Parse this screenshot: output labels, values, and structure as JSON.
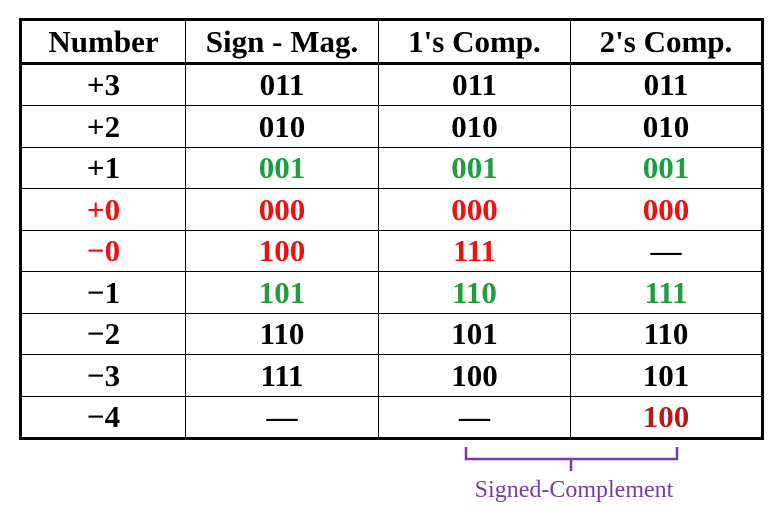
{
  "headers": [
    "Number",
    "Sign - Mag.",
    "1's Comp.",
    "2's Comp."
  ],
  "rows": [
    {
      "number": "+3",
      "sign_mag": "011",
      "ones_comp": "011",
      "twos_comp": "011"
    },
    {
      "number": "+2",
      "sign_mag": "010",
      "ones_comp": "010",
      "twos_comp": "010"
    },
    {
      "number": "+1",
      "sign_mag": "001",
      "ones_comp": "001",
      "twos_comp": "001"
    },
    {
      "number": "+0",
      "sign_mag": "000",
      "ones_comp": "000",
      "twos_comp": "000"
    },
    {
      "number": "−0",
      "sign_mag": "100",
      "ones_comp": "111",
      "twos_comp": "—"
    },
    {
      "number": "−1",
      "sign_mag": "101",
      "ones_comp": "110",
      "twos_comp": "111"
    },
    {
      "number": "−2",
      "sign_mag": "110",
      "ones_comp": "101",
      "twos_comp": "110"
    },
    {
      "number": "−3",
      "sign_mag": "111",
      "ones_comp": "100",
      "twos_comp": "101"
    },
    {
      "number": "−4",
      "sign_mag": "—",
      "ones_comp": "—",
      "twos_comp": "100"
    }
  ],
  "annotation": {
    "label": "Signed-Complement"
  },
  "colors": {
    "default": "#000000",
    "green": "#1f9e3f",
    "red": "#ee1111",
    "dark_red": "#b31a1a",
    "brace": "#7a3aa8"
  }
}
